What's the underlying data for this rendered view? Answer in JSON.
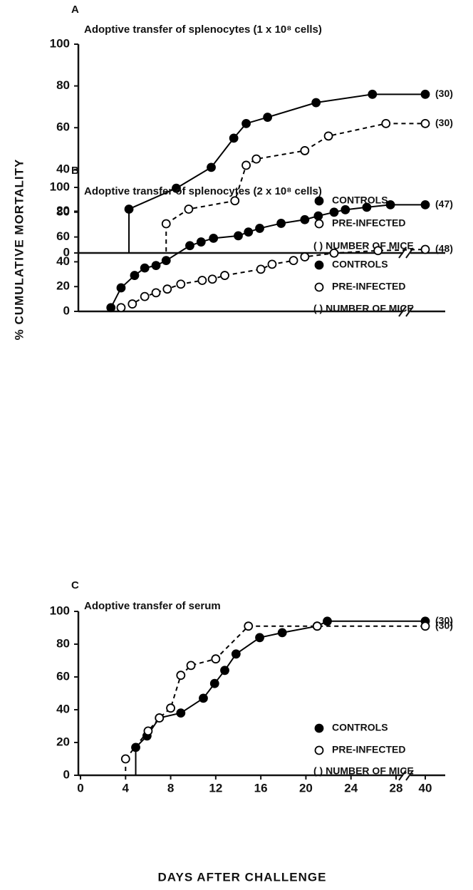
{
  "chart_data": [
    {
      "type": "line",
      "panel": "A",
      "title": "Adoptive transfer of splenocytes (1 x 10⁸ cells)",
      "xlim": [
        0,
        40
      ],
      "axis_break": 28,
      "ylim": [
        0,
        100
      ],
      "yticks": [
        0,
        20,
        40,
        60,
        80,
        100
      ],
      "legend_note": "( ) NUMBER OF MICE",
      "series": [
        {
          "name": "CONTROLS",
          "color": "#000000",
          "marker": "filled",
          "linestyle": "solid",
          "end_label": "(30)",
          "x": [
            4.3,
            8.5,
            11.6,
            13.6,
            14.7,
            16.6,
            20.9,
            25.9,
            40
          ],
          "values": [
            21,
            31,
            41,
            55,
            62,
            65,
            72,
            76,
            76
          ]
        },
        {
          "name": "PRE-INFECTED",
          "color": "#000000",
          "marker": "open",
          "linestyle": "dashed",
          "end_label": "(30)",
          "x": [
            7.6,
            9.6,
            13.7,
            14.7,
            15.6,
            19.9,
            22.0,
            27.1,
            40
          ],
          "values": [
            14,
            21,
            25,
            42,
            45,
            49,
            56,
            62,
            62
          ]
        }
      ]
    },
    {
      "type": "line",
      "panel": "B",
      "title": "Adoptive transfer of splenocytes (2 x 10⁸ cells)",
      "ylabel": "% CUMULATIVE MORTALITY",
      "xlim": [
        0,
        40
      ],
      "axis_break": 28,
      "ylim": [
        0,
        100
      ],
      "yticks": [
        0,
        20,
        40,
        60,
        80,
        100
      ],
      "legend_note": "( ) NUMBER OF MICE",
      "series": [
        {
          "name": "CONTROLS",
          "color": "#000000",
          "marker": "filled",
          "linestyle": "solid",
          "end_label": "(47)",
          "x": [
            2.7,
            3.6,
            4.8,
            5.7,
            6.7,
            7.6,
            9.7,
            10.7,
            11.8,
            14.0,
            14.9,
            15.9,
            17.8,
            19.9,
            21.1,
            22.5,
            23.5,
            25.4,
            27.5,
            40
          ],
          "values": [
            3,
            19,
            29,
            35,
            37,
            41,
            53,
            56,
            59,
            61,
            64,
            67,
            71,
            74,
            77,
            80,
            82,
            84,
            86,
            86
          ]
        },
        {
          "name": "PRE-INFECTED",
          "color": "#000000",
          "marker": "open",
          "linestyle": "dashed",
          "end_label": "(48)",
          "x": [
            3.6,
            4.6,
            5.7,
            6.7,
            7.7,
            8.9,
            10.8,
            11.7,
            12.8,
            16.0,
            17.0,
            18.9,
            19.9,
            22.5,
            26.4,
            40
          ],
          "values": [
            3,
            6,
            12,
            15,
            18,
            22,
            25,
            26,
            29,
            34,
            38,
            41,
            44,
            47,
            49,
            50
          ]
        }
      ]
    },
    {
      "type": "line",
      "panel": "C",
      "title": "Adoptive transfer of serum",
      "xlabel": "DAYS AFTER CHALLENGE",
      "xlim": [
        0,
        40
      ],
      "axis_break": 28,
      "xticks": [
        0,
        4,
        8,
        12,
        16,
        20,
        24,
        28,
        40
      ],
      "ylim": [
        0,
        100
      ],
      "yticks": [
        0,
        20,
        40,
        60,
        80,
        100
      ],
      "legend_note": "( ) NUMBER OF MICE",
      "series": [
        {
          "name": "CONTROLS",
          "color": "#000000",
          "marker": "filled",
          "linestyle": "solid",
          "end_label": "(30)",
          "x": [
            4.9,
            5.9,
            7.0,
            8.9,
            10.9,
            11.9,
            12.8,
            13.8,
            15.9,
            17.9,
            21.0,
            21.9,
            40
          ],
          "values": [
            17,
            24,
            35,
            38,
            47,
            56,
            64,
            74,
            84,
            87,
            91,
            94,
            94
          ]
        },
        {
          "name": "PRE-INFECTED",
          "color": "#000000",
          "marker": "open",
          "linestyle": "dashed",
          "end_label": "(30)",
          "x": [
            4.0,
            6.0,
            7.0,
            8.0,
            8.9,
            9.8,
            12.0,
            14.9,
            21.0,
            40
          ],
          "values": [
            10,
            27,
            35,
            41,
            61,
            67,
            71,
            91,
            91,
            91
          ]
        }
      ]
    }
  ]
}
